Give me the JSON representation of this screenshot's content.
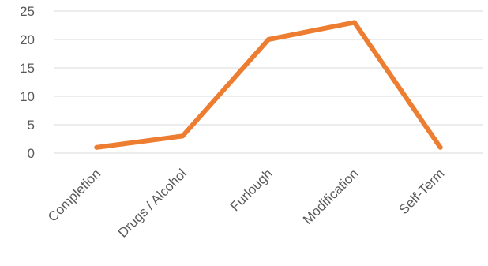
{
  "chart_data": {
    "type": "line",
    "title": "",
    "xlabel": "",
    "ylabel": "",
    "categories": [
      "Completion",
      "Drugs / Alcohol",
      "Furlough",
      "Modification",
      "Self-Term"
    ],
    "series": [
      {
        "values": [
          1,
          3,
          20,
          23,
          1
        ],
        "color": "#ED7D31"
      }
    ],
    "ylim": [
      0,
      25
    ],
    "yticks": [
      0,
      5,
      10,
      15,
      20,
      25
    ],
    "grid": true,
    "gridColor": "#D9D9D9",
    "legend": "none"
  }
}
